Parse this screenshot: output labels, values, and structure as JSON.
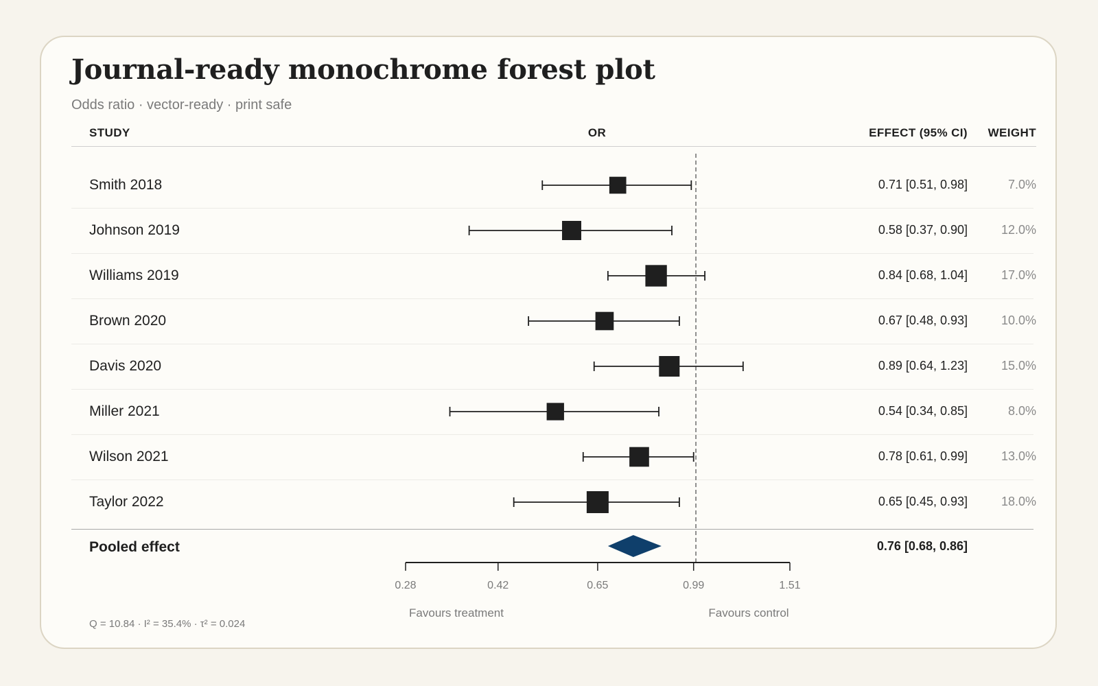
{
  "title": "Journal-ready monochrome forest plot",
  "subtitle": "Odds ratio · vector-ready · print safe",
  "headers": {
    "study": "STUDY",
    "or": "OR",
    "effect": "EFFECT (95% CI)",
    "weight": "WEIGHT"
  },
  "pooled": {
    "label": "Pooled effect",
    "or": 0.76,
    "lo": 0.68,
    "hi": 0.86,
    "effect_text": "0.76 [0.68, 0.86]"
  },
  "favours": {
    "left": "Favours treatment",
    "right": "Favours control"
  },
  "stats_line": "Q = 10.84 · I² = 35.4% · τ² = 0.024",
  "colors": {
    "marker": "#1f1f1f",
    "pooled_diamond": "#0f3f6b",
    "reference_line": "#6b6b6b"
  },
  "chart_data": {
    "type": "forest",
    "title": "Journal-ready monochrome forest plot",
    "subtitle": "Odds ratio · vector-ready · print safe",
    "xlabel": "OR",
    "x_scale": "log",
    "xlim": [
      0.28,
      1.51
    ],
    "ticks": [
      0.28,
      0.42,
      0.65,
      0.99,
      1.51
    ],
    "tick_labels": [
      "0.28",
      "0.42",
      "0.65",
      "0.99",
      "1.51"
    ],
    "reference_value": 1.0,
    "studies": [
      {
        "name": "Smith 2018",
        "or": 0.71,
        "lo": 0.51,
        "hi": 0.98,
        "effect_text": "0.71 [0.51, 0.98]",
        "weight": 7.0,
        "weight_text": "7.0%"
      },
      {
        "name": "Johnson 2019",
        "or": 0.58,
        "lo": 0.37,
        "hi": 0.9,
        "effect_text": "0.58 [0.37, 0.90]",
        "weight": 12.0,
        "weight_text": "12.0%"
      },
      {
        "name": "Williams 2019",
        "or": 0.84,
        "lo": 0.68,
        "hi": 1.04,
        "effect_text": "0.84 [0.68, 1.04]",
        "weight": 17.0,
        "weight_text": "17.0%"
      },
      {
        "name": "Brown 2020",
        "or": 0.67,
        "lo": 0.48,
        "hi": 0.93,
        "effect_text": "0.67 [0.48, 0.93]",
        "weight": 10.0,
        "weight_text": "10.0%"
      },
      {
        "name": "Davis 2020",
        "or": 0.89,
        "lo": 0.64,
        "hi": 1.23,
        "effect_text": "0.89 [0.64, 1.23]",
        "weight": 15.0,
        "weight_text": "15.0%"
      },
      {
        "name": "Miller 2021",
        "or": 0.54,
        "lo": 0.34,
        "hi": 0.85,
        "effect_text": "0.54 [0.34, 0.85]",
        "weight": 8.0,
        "weight_text": "8.0%"
      },
      {
        "name": "Wilson 2021",
        "or": 0.78,
        "lo": 0.61,
        "hi": 0.99,
        "effect_text": "0.78 [0.61, 0.99]",
        "weight": 13.0,
        "weight_text": "13.0%"
      },
      {
        "name": "Taylor 2022",
        "or": 0.65,
        "lo": 0.45,
        "hi": 0.93,
        "effect_text": "0.65 [0.45, 0.93]",
        "weight": 18.0,
        "weight_text": "18.0%"
      }
    ]
  }
}
